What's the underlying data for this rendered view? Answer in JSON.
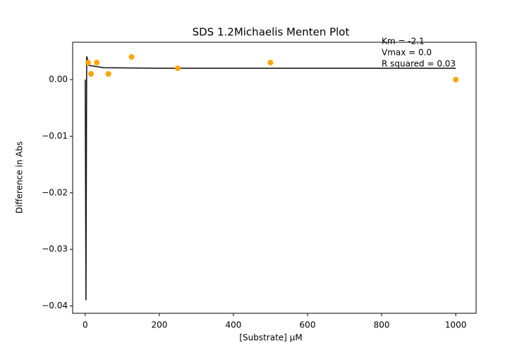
{
  "chart_data": {
    "type": "scatter",
    "title": "SDS 1.2Michaelis Menten Plot",
    "x_label": "[Substrate] µM",
    "y_label": "Difference in Abs",
    "annotations": [
      "Km = -2.1",
      "Vmax = 0.0",
      "R squared = 0.03"
    ],
    "x": [
      7.8125,
      15.625,
      31.25,
      62.5,
      125,
      250,
      500,
      1000
    ],
    "values": [
      0.003,
      0.001,
      0.003,
      0.001,
      0.004,
      0.002,
      0.003,
      0.0
    ],
    "color": "#ffa500",
    "fit": {
      "x": [
        0,
        1.9,
        3.9,
        10,
        50,
        200,
        500,
        1000
      ],
      "values": [
        0,
        -0.039,
        0.0041,
        0.0025,
        0.0021,
        0.002,
        0.002,
        0.002
      ],
      "color": "#1a1a1a"
    },
    "xlim": [
      -34,
      1055
    ],
    "ylim": [
      -0.0413,
      0.0066
    ],
    "xticks": [
      0,
      200,
      400,
      600,
      800,
      1000
    ],
    "yticks": [
      {
        "value": 0,
        "label": "0.00"
      },
      {
        "value": -0.01,
        "label": "−0.01"
      },
      {
        "value": -0.02,
        "label": "−0.02"
      },
      {
        "value": -0.03,
        "label": "−0.03"
      },
      {
        "value": -0.04,
        "label": "−0.04"
      }
    ]
  }
}
